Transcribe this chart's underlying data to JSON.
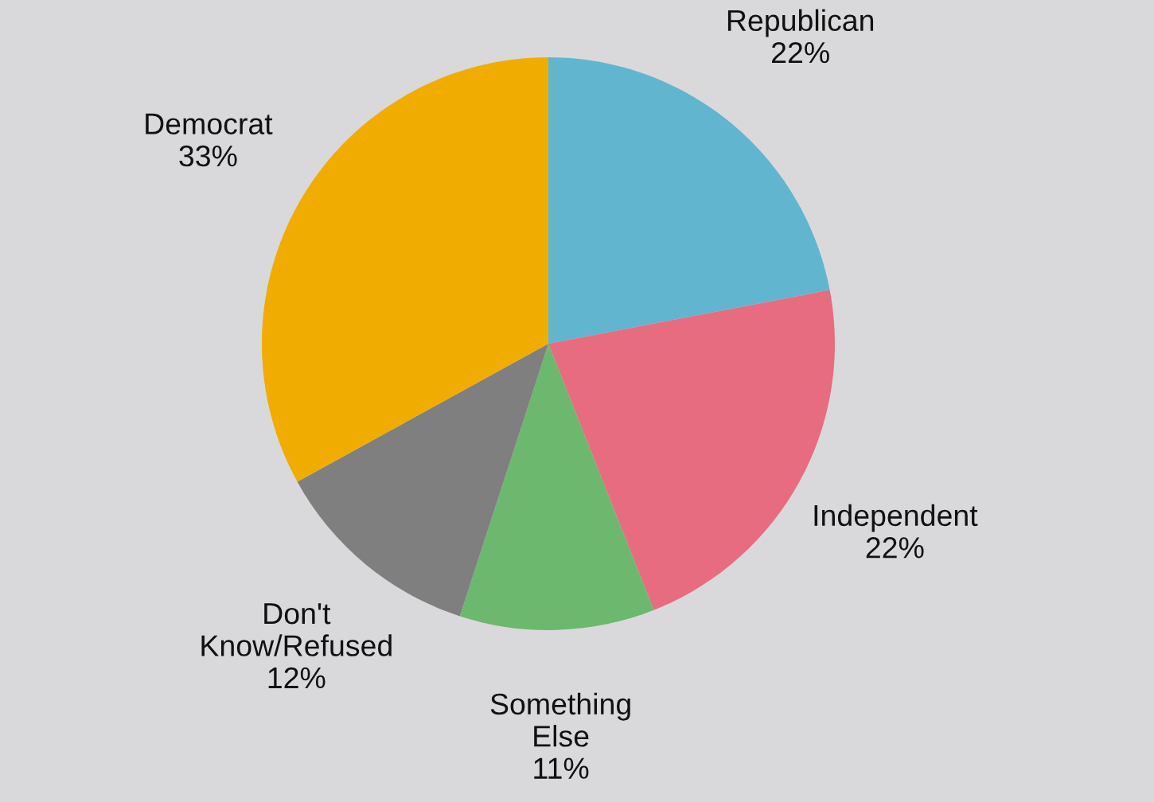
{
  "chart_data": {
    "type": "pie",
    "categories": [
      "Republican",
      "Independent",
      "Something\nElse",
      "Don't\nKnow/Refused",
      "Democrat"
    ],
    "values": [
      22,
      22,
      11,
      12,
      33
    ],
    "value_labels": [
      "22%",
      "22%",
      "11%",
      "12%",
      "33%"
    ],
    "colors": [
      "#62b5cf",
      "#e76c80",
      "#6cb86e",
      "#7f7f7f",
      "#f0ad00"
    ],
    "legend": false
  }
}
